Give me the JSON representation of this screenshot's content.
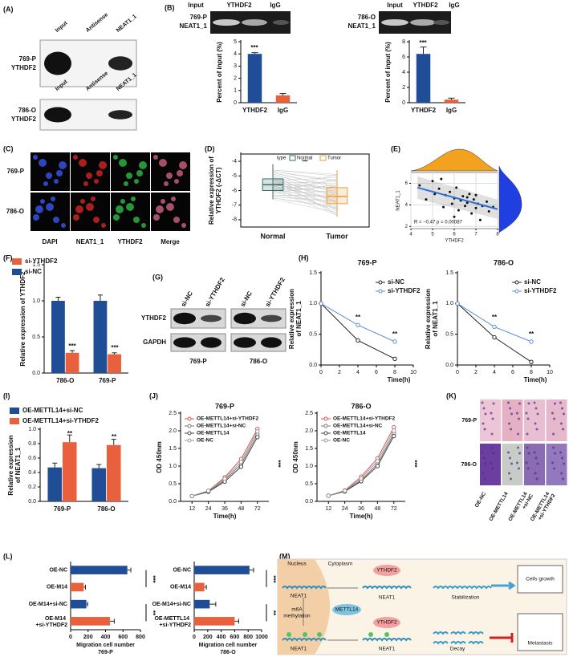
{
  "panel_labels": [
    "(A)",
    "(B)",
    "(C)",
    "(D)",
    "(E)",
    "(F)",
    "(G)",
    "(H)",
    "(I)",
    "(J)",
    "(K)",
    "(L)",
    "(M)"
  ],
  "panel_a": {
    "lanes": [
      "Input",
      "Antisense",
      "NEAT1_1"
    ],
    "rows": [
      [
        "769-P",
        "YTHDF2"
      ],
      [
        "786-O",
        "YTHDF2"
      ]
    ]
  },
  "panel_b": {
    "gels": [
      {
        "lanes": [
          "Input",
          "YTHDF2",
          "IgG"
        ],
        "label": [
          "769-P",
          "NEAT1_1"
        ]
      },
      {
        "lanes": [
          "Input",
          "YTHDF2",
          "IgG"
        ],
        "label": [
          "786-O",
          "NEAT1_1"
        ]
      }
    ]
  },
  "panel_c": {
    "rows": [
      "769-P",
      "786-O"
    ],
    "columns": [
      "DAPI",
      "NEAT1_1",
      "YTHDF2",
      "Merge"
    ]
  },
  "panel_g": {
    "lanes": [
      "si-NC",
      "si-YTHDF2",
      "si-NC",
      "si-YTHDF2"
    ],
    "rows": [
      "YTHDF2",
      "GAPDH"
    ],
    "groups": [
      "769-P",
      "786-O"
    ]
  },
  "panel_k": {
    "rows": [
      "769-P",
      "786-O"
    ],
    "columns": [
      "OE-NC",
      "OE-METTL14",
      "OE-METTL14 +si-NC",
      "OE-METTL14 +si-YTHDF2"
    ]
  },
  "panel_m": {
    "texts": [
      "Nucleus",
      "Cytoplasm",
      "NEAT1",
      "YTHDF2",
      "NEAT1",
      "Stabilization",
      "Cells growth",
      "m6A",
      "methylation",
      "METTL14",
      "YTHDF2",
      "NEAT1",
      "NEAT1",
      "Decay",
      "Metastasis"
    ]
  },
  "chart_data": [
    {
      "type": "bar",
      "categories": [
        "YTHDF2",
        "IgG"
      ],
      "values": [
        4.0,
        0.6
      ],
      "errors": [
        0.1,
        0.15
      ],
      "colors": [
        "#1f4e96",
        "#e8603c"
      ],
      "ylabel": "Percent of input (%)",
      "ylim": [
        0,
        5
      ],
      "yticks": [
        0,
        1,
        2,
        3,
        4,
        5
      ],
      "annotations": [
        "***"
      ]
    },
    {
      "type": "bar",
      "categories": [
        "YTHDF2",
        "IgG"
      ],
      "values": [
        6.4,
        0.4
      ],
      "errors": [
        0.9,
        0.2
      ],
      "colors": [
        "#1f4e96",
        "#e8603c"
      ],
      "ylabel": "Percent of input (%)",
      "ylim": [
        0,
        8
      ],
      "yticks": [
        0,
        2,
        4,
        6,
        8
      ],
      "annotations": [
        "***"
      ]
    },
    {
      "type": "box",
      "categories": [
        "Normal",
        "Tumor"
      ],
      "colors": [
        "#3a6e6a",
        "#e8a040"
      ],
      "legend_title": "type",
      "stats": [
        {
          "min": -6.6,
          "q1": -6.0,
          "median": -5.6,
          "q3": -5.2,
          "max": -4.2
        },
        {
          "min": -7.8,
          "q1": -6.9,
          "median": -6.4,
          "q3": -5.8,
          "max": -4.6
        }
      ],
      "ylabel": [
        "Relative expression of",
        "YTHDF2 (-ΔCT)"
      ],
      "ylim": [
        -8.5,
        -3.5
      ],
      "yticks": [
        -8,
        -7,
        -6,
        -5,
        -4
      ],
      "annotations": [
        "***"
      ]
    },
    {
      "type": "scatter",
      "x": [
        4.4,
        4.7,
        5.0,
        5.1,
        5.3,
        5.5,
        5.6,
        5.8,
        5.9,
        6.0,
        6.1,
        6.2,
        6.3,
        6.4,
        6.5,
        6.6,
        6.7,
        6.8,
        6.9,
        7.0,
        7.1,
        7.2,
        7.3,
        7.5,
        7.6,
        7.8,
        5.4,
        6.0,
        6.6,
        7.0
      ],
      "y": [
        5.8,
        4.5,
        6.2,
        5.0,
        5.5,
        3.8,
        4.9,
        5.2,
        4.1,
        4.6,
        5.6,
        3.5,
        4.4,
        4.8,
        3.9,
        4.2,
        5.0,
        3.2,
        4.5,
        3.7,
        4.1,
        2.6,
        3.9,
        4.3,
        3.4,
        3.8,
        6.4,
        2.9,
        4.7,
        4.9
      ],
      "trend": {
        "x": [
          4.3,
          8
        ],
        "y": [
          5.6,
          3.6
        ]
      },
      "color": "#111",
      "trend_color": "#2b6fd6",
      "xlabel": "YTHDF2",
      "ylabel": "NEAT1_1",
      "xlim": [
        4,
        8
      ],
      "xticks": [
        4,
        5,
        6,
        7,
        8
      ],
      "ylim": [
        1.8,
        7
      ],
      "yticks": [
        2,
        4,
        6
      ],
      "grid": true,
      "annotations": [
        "R = −0.47  p = 0.00087"
      ]
    },
    {
      "type": "bar",
      "categories": [
        "786-O",
        "769-P"
      ],
      "series": [
        {
          "name": "si-NC",
          "color": "#1f4e96",
          "values": [
            1.0,
            1.0
          ],
          "errors": [
            0.05,
            0.08
          ]
        },
        {
          "name": "si-YTHDF2",
          "color": "#e8603c",
          "values": [
            0.28,
            0.26
          ],
          "errors": [
            0.03,
            0.02
          ]
        }
      ],
      "ylabel": "Relative expression of YTHDF2",
      "ylim": [
        0,
        1.5
      ],
      "yticks": [
        {
          "value": 0,
          "label": "0.0"
        },
        0.5,
        {
          "value": 1,
          "label": "1.0"
        },
        1.5
      ],
      "annotations": [
        "***",
        "***"
      ]
    },
    {
      "type": "line",
      "title": "769-P",
      "x": [
        0,
        4,
        8
      ],
      "series": [
        {
          "name": "si-NC",
          "color": "#222",
          "values": [
            1.0,
            0.4,
            0.1
          ]
        },
        {
          "name": "si-YTHDF2",
          "color": "#5b8fd6",
          "values": [
            1.0,
            0.65,
            0.38
          ]
        }
      ],
      "xlabel": "Time(h)",
      "ylabel": [
        "Relative expression",
        "of NEAT1_1"
      ],
      "xlim": [
        0,
        10
      ],
      "xticks": [
        0,
        2,
        4,
        6,
        8,
        10
      ],
      "ylim": [
        0,
        1.5
      ],
      "yticks": [
        {
          "value": 0,
          "label": "0.0"
        },
        0.5,
        {
          "value": 1,
          "label": "1.0"
        },
        1.5
      ],
      "annotations": [
        "**",
        "**"
      ]
    },
    {
      "type": "line",
      "title": "786-O",
      "x": [
        0,
        4,
        8
      ],
      "series": [
        {
          "name": "si-NC",
          "color": "#222",
          "values": [
            1.0,
            0.45,
            0.05
          ]
        },
        {
          "name": "si-YTHDF2",
          "color": "#5b8fd6",
          "values": [
            1.0,
            0.62,
            0.38
          ]
        }
      ],
      "xlabel": "Time(h)",
      "ylabel": [
        "Relative expression",
        "of NEAT1_1"
      ],
      "xlim": [
        0,
        10
      ],
      "xticks": [
        0,
        2,
        4,
        6,
        8,
        10
      ],
      "ylim": [
        0,
        1.5
      ],
      "yticks": [
        {
          "value": 0,
          "label": "0.0"
        },
        0.5,
        {
          "value": 1,
          "label": "1.0"
        },
        1.5
      ],
      "annotations": [
        "**",
        "**"
      ]
    },
    {
      "type": "bar",
      "categories": [
        "769-P",
        "786-O"
      ],
      "series": [
        {
          "name": "OE-METTL14+si-NC",
          "color": "#1f4e96",
          "values": [
            0.47,
            0.46
          ],
          "errors": [
            0.06,
            0.05
          ]
        },
        {
          "name": "OE-METTL14+si-YTHDF2",
          "color": "#e8603c",
          "values": [
            0.82,
            0.78
          ],
          "errors": [
            0.1,
            0.08
          ]
        }
      ],
      "ylabel": [
        "Relative expression",
        "of NEAT1_1"
      ],
      "ylim": [
        0,
        1.0
      ],
      "yticks": [
        {
          "value": 0,
          "label": "0.0"
        },
        0.2,
        0.4,
        0.6,
        0.8,
        {
          "value": 1,
          "label": "1.0"
        }
      ],
      "annotations": [
        "**",
        "**"
      ]
    },
    {
      "type": "line",
      "title": "769-P",
      "categories": [
        "12",
        "24",
        "36",
        "48",
        "72"
      ],
      "series": [
        {
          "name": "OE-METTL14+si-YTHDF2",
          "color": "#d9534f",
          "values": [
            0.15,
            0.3,
            0.68,
            1.2,
            2.05
          ]
        },
        {
          "name": "OE-METTL14+si-NC",
          "color": "#777",
          "values": [
            0.15,
            0.28,
            0.6,
            1.05,
            1.9
          ]
        },
        {
          "name": "OE-METTL14",
          "color": "#444",
          "values": [
            0.15,
            0.27,
            0.56,
            0.98,
            1.82
          ]
        },
        {
          "name": "OE-NC",
          "color": "#999",
          "values": [
            0.15,
            0.3,
            0.64,
            1.12,
            1.98
          ]
        }
      ],
      "xlabel": "Time(h)",
      "ylabel": "OD 450nm",
      "ylim": [
        0,
        2.5
      ],
      "yticks": [
        {
          "value": 0,
          "label": "0.0"
        },
        0.5,
        {
          "value": 1,
          "label": "1.0"
        },
        1.5,
        {
          "value": 2,
          "label": "2.0"
        },
        2.5
      ],
      "annotations": [
        "***"
      ]
    },
    {
      "type": "line",
      "title": "786-O",
      "categories": [
        "12",
        "24",
        "36",
        "48",
        "72"
      ],
      "series": [
        {
          "name": "OE-METTL14+si-YTHDF2",
          "color": "#d9534f",
          "values": [
            0.16,
            0.31,
            0.7,
            1.22,
            2.1
          ]
        },
        {
          "name": "OE-METTL14+si-NC",
          "color": "#777",
          "values": [
            0.16,
            0.29,
            0.6,
            1.06,
            1.92
          ]
        },
        {
          "name": "OE-METTL14",
          "color": "#444",
          "values": [
            0.16,
            0.28,
            0.57,
            1.0,
            1.85
          ]
        },
        {
          "name": "OE-NC",
          "color": "#999",
          "values": [
            0.16,
            0.3,
            0.65,
            1.14,
            2.0
          ]
        }
      ],
      "xlabel": "Time(h)",
      "ylabel": "OD 450nm",
      "ylim": [
        0,
        2.5
      ],
      "yticks": [
        {
          "value": 0,
          "label": "0.0"
        },
        0.5,
        {
          "value": 1,
          "label": "1.0"
        },
        1.5,
        {
          "value": 2,
          "label": "2.0"
        },
        2.5
      ],
      "annotations": [
        "***"
      ]
    },
    {
      "type": "hbar",
      "categories": [
        "OE-NC",
        "OE-M14",
        "OE-M14+si-NC",
        "OE-M14 +si-YTHDF2"
      ],
      "values": [
        650,
        150,
        180,
        450
      ],
      "errors": [
        40,
        20,
        15,
        50
      ],
      "colors": [
        "#1f4e96",
        "#e8603c",
        "#1f4e96",
        "#e8603c"
      ],
      "xlabel": "Migration cell number",
      "subtitle": "769-P",
      "xlim": [
        0,
        800
      ],
      "xticks": [
        0,
        200,
        400,
        600,
        800
      ],
      "annotations": [
        "***",
        "**"
      ]
    },
    {
      "type": "hbar",
      "categories": [
        "OE-NC",
        "OE-M14",
        "OE-M14+si-NC",
        "OE-METTL14 +si-YTHDF2"
      ],
      "values": [
        820,
        150,
        230,
        600
      ],
      "errors": [
        60,
        30,
        90,
        60
      ],
      "colors": [
        "#1f4e96",
        "#e8603c",
        "#1f4e96",
        "#e8603c"
      ],
      "xlabel": "Migration cell number",
      "subtitle": "786-O",
      "xlim": [
        0,
        1000
      ],
      "xticks": [
        0,
        200,
        400,
        600,
        800,
        1000
      ],
      "annotations": [
        "***",
        "**"
      ]
    }
  ]
}
